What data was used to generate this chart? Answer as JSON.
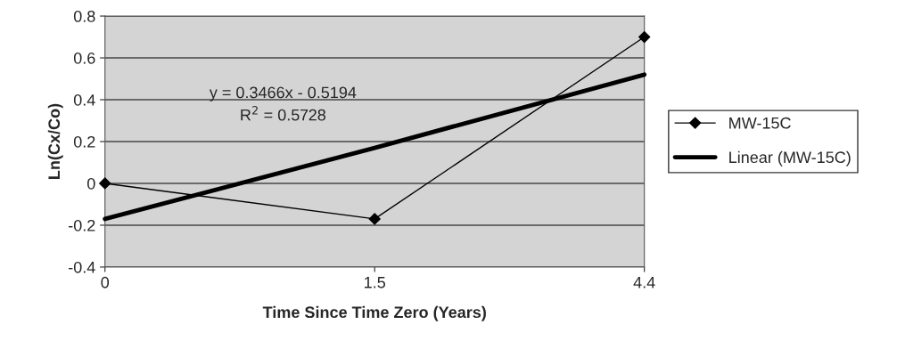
{
  "chart_data": {
    "type": "line",
    "xlabel": "Time Since Time Zero (Years)",
    "ylabel": "Ln(Cx/Co)",
    "categories": [
      "0",
      "1.5",
      "4.4"
    ],
    "series": [
      {
        "name": "MW-15C",
        "color": "#000000",
        "values": [
          0,
          -0.17,
          0.7
        ],
        "marker": "diamond"
      },
      {
        "name": "Linear (MW-15C)",
        "color": "#000000",
        "values": [
          -0.17,
          0.17,
          0.52
        ],
        "marker": "none"
      }
    ],
    "ylim": [
      -0.4,
      0.8
    ],
    "yticks": [
      -0.4,
      -0.2,
      0,
      0.2,
      0.4,
      0.6,
      0.8
    ],
    "grid": "y",
    "legend": "right",
    "annotations": [
      "y = 0.3466x - 0.5194",
      "R$^{2}$ = 0.5728"
    ]
  }
}
